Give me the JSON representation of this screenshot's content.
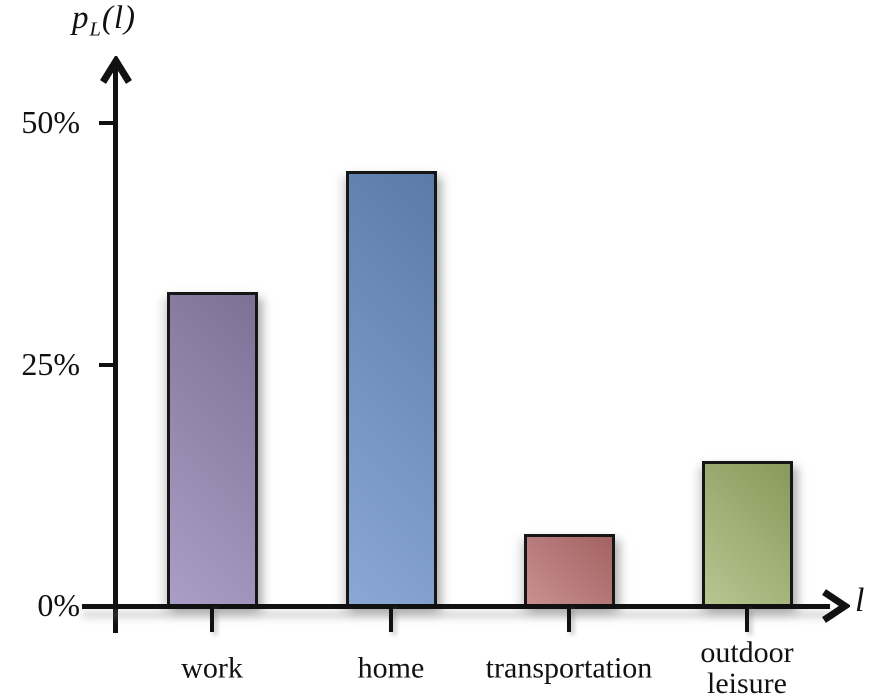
{
  "figure": {
    "y_axis_title": {
      "variable": "p",
      "subscript": "L",
      "open_paren": "(",
      "argument": "l",
      "close_paren": ")"
    },
    "x_axis_title": "l"
  },
  "chart_data": {
    "type": "bar",
    "title": "",
    "xlabel": "l",
    "ylabel": "p_L(l)",
    "unit": "%",
    "categories": [
      "work",
      "home",
      "transportation",
      "outdoor leisure"
    ],
    "category_label_lines": [
      [
        "work"
      ],
      [
        "home"
      ],
      [
        "transportation"
      ],
      [
        "outdoor",
        "leisure"
      ]
    ],
    "values": [
      32.5,
      45,
      7.5,
      15
    ],
    "yticks": [
      {
        "label": "50%",
        "value": 50
      },
      {
        "label": "25%",
        "value": 25
      },
      {
        "label": "0%",
        "value": 0
      }
    ],
    "ylim": [
      0,
      56
    ],
    "grid": false,
    "legend": false,
    "bar_colors": [
      {
        "name": "purple",
        "dark": "#7e7095",
        "light": "#ab9ec6"
      },
      {
        "name": "blue",
        "dark": "#5a7aa8",
        "light": "#8ba8d4"
      },
      {
        "name": "red",
        "dark": "#a36262",
        "light": "#ca9090"
      },
      {
        "name": "green",
        "dark": "#87995c",
        "light": "#b8c690"
      }
    ],
    "axis_color": "#111111"
  }
}
